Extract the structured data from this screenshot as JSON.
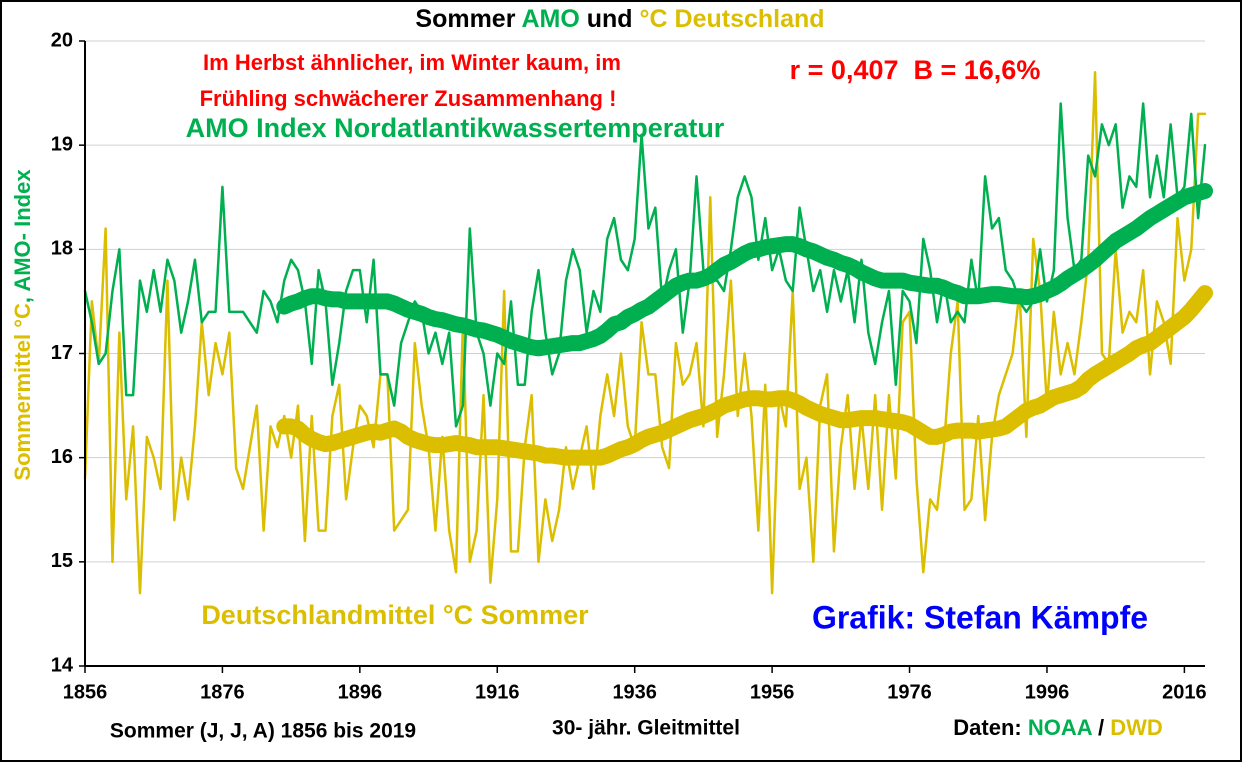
{
  "chart_data": {
    "type": "line",
    "title": [
      "Sommer",
      "AMO",
      "und",
      "°C Deutschland"
    ],
    "ylabel": [
      "Sommermittel °C",
      ", AMO- Index"
    ],
    "annotations": {
      "text_line_1": "Im Herbst ähnlicher, im Winter kaum, im",
      "text_line_2": "Frühling schwächerer Zusammenhang !",
      "stats": "r = 0,407  B = 16,6%",
      "credit": "Grafik: Stefan Kämpfe",
      "period": "Sommer (J, J, A) 1856 bis 2019",
      "smoothing": "30- jähr. Gleitmittel",
      "source_label": "Daten:",
      "source_1": "NOAA",
      "source_sep": "/",
      "source_2": "DWD"
    },
    "xlim": [
      1856,
      2019
    ],
    "xticks": [
      1856,
      1876,
      1896,
      1916,
      1936,
      1956,
      1976,
      1996,
      2016
    ],
    "ylim": [
      14,
      20
    ],
    "yticks": [
      14,
      15,
      16,
      17,
      18,
      19,
      20
    ],
    "grid": true,
    "x": [
      1856,
      1857,
      1858,
      1859,
      1860,
      1861,
      1862,
      1863,
      1864,
      1865,
      1866,
      1867,
      1868,
      1869,
      1870,
      1871,
      1872,
      1873,
      1874,
      1875,
      1876,
      1877,
      1878,
      1879,
      1880,
      1881,
      1882,
      1883,
      1884,
      1885,
      1886,
      1887,
      1888,
      1889,
      1890,
      1891,
      1892,
      1893,
      1894,
      1895,
      1896,
      1897,
      1898,
      1899,
      1900,
      1901,
      1902,
      1903,
      1904,
      1905,
      1906,
      1907,
      1908,
      1909,
      1910,
      1911,
      1912,
      1913,
      1914,
      1915,
      1916,
      1917,
      1918,
      1919,
      1920,
      1921,
      1922,
      1923,
      1924,
      1925,
      1926,
      1927,
      1928,
      1929,
      1930,
      1931,
      1932,
      1933,
      1934,
      1935,
      1936,
      1937,
      1938,
      1939,
      1940,
      1941,
      1942,
      1943,
      1944,
      1945,
      1946,
      1947,
      1948,
      1949,
      1950,
      1951,
      1952,
      1953,
      1954,
      1955,
      1956,
      1957,
      1958,
      1959,
      1960,
      1961,
      1962,
      1963,
      1964,
      1965,
      1966,
      1967,
      1968,
      1969,
      1970,
      1971,
      1972,
      1973,
      1974,
      1975,
      1976,
      1977,
      1978,
      1979,
      1980,
      1981,
      1982,
      1983,
      1984,
      1985,
      1986,
      1987,
      1988,
      1989,
      1990,
      1991,
      1992,
      1993,
      1994,
      1995,
      1996,
      1997,
      1998,
      1999,
      2000,
      2001,
      2002,
      2003,
      2004,
      2005,
      2006,
      2007,
      2008,
      2009,
      2010,
      2011,
      2012,
      2013,
      2014,
      2015,
      2016,
      2017,
      2018,
      2019
    ],
    "series": [
      {
        "name": "Deutschlandmittel °C Sommer",
        "color": "#dcbe00",
        "line_width": 2.5,
        "values": [
          15.8,
          17.5,
          16.9,
          18.2,
          15.0,
          17.2,
          15.6,
          16.3,
          14.7,
          16.2,
          16.0,
          15.7,
          17.7,
          15.4,
          16.0,
          15.6,
          16.3,
          17.3,
          16.6,
          17.1,
          16.8,
          17.2,
          15.9,
          15.7,
          16.1,
          16.5,
          15.3,
          16.3,
          16.1,
          16.4,
          16.0,
          16.5,
          15.2,
          16.4,
          15.3,
          15.3,
          16.4,
          16.7,
          15.6,
          16.1,
          16.5,
          16.4,
          16.1,
          16.8,
          16.8,
          15.3,
          15.4,
          15.5,
          17.1,
          16.5,
          16.1,
          15.3,
          16.2,
          15.3,
          14.9,
          17.3,
          15.0,
          15.3,
          16.6,
          14.8,
          15.6,
          17.6,
          15.1,
          15.1,
          16.1,
          16.6,
          15.0,
          15.6,
          15.2,
          15.5,
          16.1,
          15.7,
          16.0,
          16.3,
          15.7,
          16.4,
          16.8,
          16.4,
          17.0,
          16.3,
          16.1,
          17.3,
          16.8,
          16.8,
          16.1,
          15.9,
          17.1,
          16.7,
          16.8,
          17.1,
          16.3,
          18.5,
          16.2,
          16.8,
          17.7,
          16.4,
          17.0,
          16.4,
          15.3,
          16.7,
          14.7,
          16.6,
          16.3,
          17.6,
          15.7,
          16.0,
          15.0,
          16.5,
          16.8,
          15.1,
          16.1,
          16.6,
          15.7,
          16.4,
          15.7,
          16.6,
          15.5,
          16.6,
          15.8,
          17.3,
          17.4,
          15.8,
          14.9,
          15.6,
          15.5,
          16.1,
          17.0,
          17.5,
          15.5,
          15.6,
          16.4,
          15.4,
          16.2,
          16.6,
          16.8,
          17.0,
          17.6,
          16.2,
          18.1,
          17.6,
          16.5,
          17.4,
          16.8,
          17.1,
          16.8,
          17.3,
          17.9,
          19.7,
          17.0,
          16.9,
          18.0,
          17.2,
          17.4,
          17.3,
          17.8,
          16.8,
          17.5,
          17.3,
          16.9,
          18.3,
          17.7,
          18.0,
          19.3,
          19.3
        ]
      },
      {
        "name": "AMO Index Nordatlantikwassertemperatur",
        "color": "#00b050",
        "line_width": 2.5,
        "values": [
          17.6,
          17.3,
          16.9,
          17.0,
          17.6,
          18.0,
          16.6,
          16.6,
          17.7,
          17.4,
          17.8,
          17.4,
          17.9,
          17.7,
          17.2,
          17.5,
          17.9,
          17.3,
          17.4,
          17.4,
          18.6,
          17.4,
          17.4,
          17.4,
          17.3,
          17.2,
          17.6,
          17.5,
          17.3,
          17.7,
          17.9,
          17.8,
          17.5,
          16.9,
          17.8,
          17.5,
          16.7,
          17.1,
          17.6,
          17.8,
          17.8,
          17.3,
          17.9,
          16.8,
          16.8,
          16.5,
          17.1,
          17.3,
          17.5,
          17.4,
          17.0,
          17.2,
          16.9,
          17.2,
          16.3,
          16.5,
          18.2,
          17.2,
          17.0,
          16.5,
          17.0,
          16.9,
          17.5,
          16.7,
          16.7,
          17.4,
          17.8,
          17.2,
          16.8,
          17.0,
          17.7,
          18.0,
          17.8,
          17.2,
          17.6,
          17.4,
          18.1,
          18.3,
          17.9,
          17.8,
          18.1,
          19.1,
          18.2,
          18.4,
          17.5,
          17.8,
          18.0,
          17.2,
          17.7,
          18.7,
          17.8,
          17.7,
          17.7,
          17.6,
          18.0,
          18.5,
          18.7,
          18.5,
          17.9,
          18.3,
          17.8,
          18.0,
          17.7,
          17.6,
          18.4,
          18.0,
          17.6,
          17.8,
          17.4,
          17.8,
          17.5,
          17.8,
          17.3,
          17.9,
          17.2,
          16.9,
          17.3,
          17.6,
          16.7,
          17.6,
          17.5,
          17.1,
          18.1,
          17.8,
          17.3,
          17.7,
          17.3,
          17.4,
          17.3,
          17.9,
          17.5,
          18.7,
          18.2,
          18.3,
          17.8,
          17.7,
          17.5,
          17.4,
          17.5,
          18.0,
          17.5,
          17.8,
          19.4,
          18.3,
          17.8,
          17.9,
          18.9,
          18.7,
          19.2,
          19.0,
          19.2,
          18.4,
          18.7,
          18.6,
          19.4,
          18.5,
          18.9,
          18.5,
          19.2,
          18.5,
          18.6,
          19.3,
          18.3,
          19.0
        ]
      },
      {
        "color": "#00b050",
        "line_width": 16,
        "values": [
          null,
          null,
          null,
          null,
          null,
          null,
          null,
          null,
          null,
          null,
          null,
          null,
          null,
          null,
          null,
          null,
          null,
          null,
          null,
          null,
          null,
          null,
          null,
          null,
          null,
          null,
          null,
          null,
          null,
          17.45,
          17.48,
          17.5,
          17.53,
          17.55,
          17.55,
          17.53,
          17.52,
          17.52,
          17.5,
          17.5,
          17.5,
          17.5,
          17.5,
          17.5,
          17.5,
          17.48,
          17.45,
          17.42,
          17.4,
          17.38,
          17.35,
          17.33,
          17.32,
          17.3,
          17.28,
          17.27,
          17.25,
          17.23,
          17.22,
          17.2,
          17.18,
          17.15,
          17.12,
          17.1,
          17.08,
          17.06,
          17.05,
          17.06,
          17.07,
          17.08,
          17.09,
          17.1,
          17.1,
          17.12,
          17.14,
          17.17,
          17.22,
          17.28,
          17.3,
          17.35,
          17.38,
          17.42,
          17.45,
          17.5,
          17.55,
          17.6,
          17.65,
          17.68,
          17.7,
          17.7,
          17.72,
          17.75,
          17.8,
          17.85,
          17.88,
          17.92,
          17.96,
          17.99,
          18.0,
          18.02,
          18.03,
          18.04,
          18.05,
          18.05,
          18.03,
          18.0,
          17.98,
          17.95,
          17.92,
          17.9,
          17.87,
          17.85,
          17.82,
          17.78,
          17.75,
          17.72,
          17.7,
          17.7,
          17.7,
          17.7,
          17.68,
          17.67,
          17.66,
          17.65,
          17.65,
          17.63,
          17.6,
          17.58,
          17.55,
          17.55,
          17.55,
          17.56,
          17.57,
          17.57,
          17.56,
          17.55,
          17.55,
          17.54,
          17.55,
          17.57,
          17.6,
          17.63,
          17.67,
          17.72,
          17.76,
          17.8,
          17.85,
          17.9,
          17.96,
          18.02,
          18.08,
          18.12,
          18.16,
          18.2,
          18.25,
          18.3,
          18.34,
          18.38,
          18.42,
          18.46,
          18.5,
          18.52,
          18.54,
          18.56
        ]
      },
      {
        "color": "#dcbe00",
        "line_width": 16,
        "values": [
          null,
          null,
          null,
          null,
          null,
          null,
          null,
          null,
          null,
          null,
          null,
          null,
          null,
          null,
          null,
          null,
          null,
          null,
          null,
          null,
          null,
          null,
          null,
          null,
          null,
          null,
          null,
          null,
          null,
          16.3,
          16.3,
          16.28,
          16.22,
          16.18,
          16.15,
          16.13,
          16.14,
          16.16,
          16.18,
          16.2,
          16.22,
          16.24,
          16.25,
          16.24,
          16.26,
          16.28,
          16.25,
          16.2,
          16.17,
          16.15,
          16.13,
          16.12,
          16.12,
          16.13,
          16.14,
          16.13,
          16.12,
          16.1,
          16.1,
          16.1,
          16.1,
          16.09,
          16.08,
          16.07,
          16.06,
          16.05,
          16.04,
          16.02,
          16.02,
          16.01,
          16.0,
          16.0,
          16.0,
          16.0,
          16.0,
          16.0,
          16.02,
          16.05,
          16.08,
          16.1,
          16.13,
          16.17,
          16.2,
          16.22,
          16.24,
          16.27,
          16.3,
          16.33,
          16.36,
          16.38,
          16.4,
          16.43,
          16.46,
          16.5,
          16.52,
          16.54,
          16.56,
          16.57,
          16.57,
          16.56,
          16.56,
          16.57,
          16.57,
          16.55,
          16.52,
          16.48,
          16.45,
          16.42,
          16.4,
          16.38,
          16.36,
          16.36,
          16.37,
          16.38,
          16.38,
          16.38,
          16.37,
          16.36,
          16.35,
          16.34,
          16.32,
          16.28,
          16.24,
          16.2,
          16.2,
          16.22,
          16.25,
          16.26,
          16.26,
          16.26,
          16.25,
          16.26,
          16.27,
          16.28,
          16.3,
          16.35,
          16.4,
          16.45,
          16.48,
          16.5,
          16.54,
          16.58,
          16.6,
          16.62,
          16.64,
          16.68,
          16.75,
          16.8,
          16.84,
          16.88,
          16.92,
          16.96,
          17.0,
          17.05,
          17.08,
          17.1,
          17.15,
          17.2,
          17.25,
          17.3,
          17.35,
          17.42,
          17.5,
          17.58
        ]
      }
    ]
  }
}
